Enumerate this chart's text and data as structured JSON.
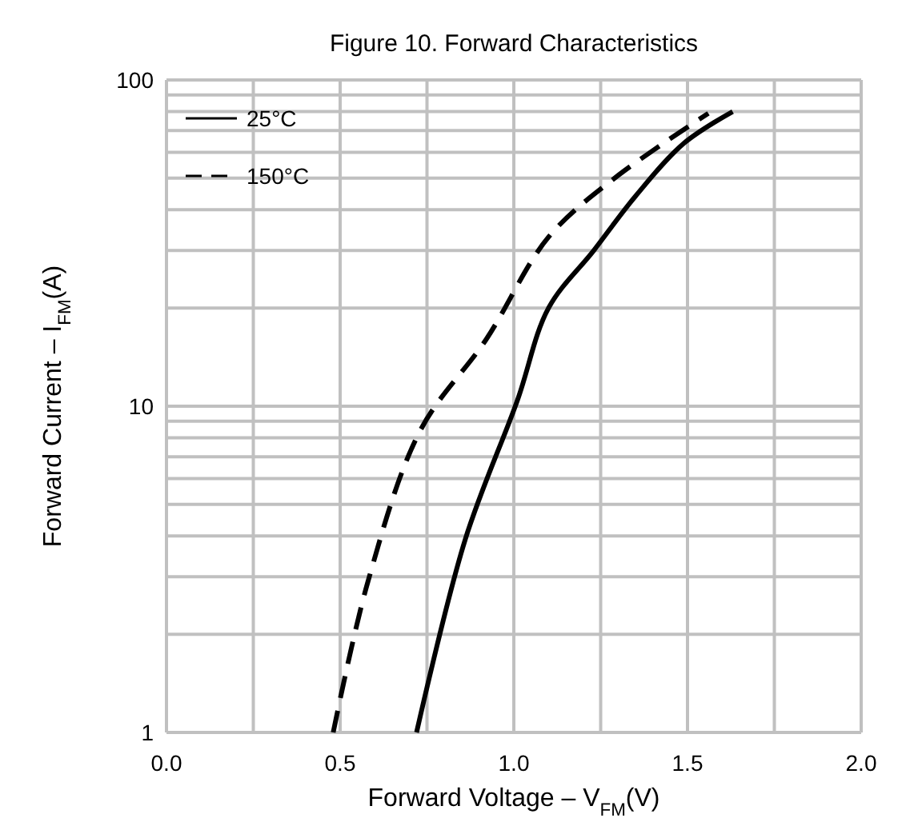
{
  "chart_data": {
    "type": "line",
    "title": "Figure 10. Forward Characteristics",
    "xlabel": "Forward Voltage    –  V$_{FM}$(V)",
    "ylabel": "Forward Current  –  I$_{FM}$(A)",
    "log": "y",
    "xlim": [
      0,
      2
    ],
    "ylim": [
      1,
      100
    ],
    "xticks": [
      {
        "value": 0,
        "label": "0.0"
      },
      {
        "value": 0.25,
        "label": null
      },
      {
        "value": 0.5,
        "label": "0.5"
      },
      {
        "value": 0.75,
        "label": null
      },
      {
        "value": 1,
        "label": "1.0"
      },
      {
        "value": 1.25,
        "label": null
      },
      {
        "value": 1.5,
        "label": "1.5"
      },
      {
        "value": 1.75,
        "label": null
      },
      {
        "value": 2,
        "label": "2.0"
      }
    ],
    "yticks": [
      1,
      {
        "value": 2,
        "label": null
      },
      {
        "value": 3,
        "label": null
      },
      {
        "value": 4,
        "label": null
      },
      {
        "value": 5,
        "label": null
      },
      {
        "value": 6,
        "label": null
      },
      {
        "value": 7,
        "label": null
      },
      {
        "value": 8,
        "label": null
      },
      {
        "value": 9,
        "label": null
      },
      10,
      {
        "value": 20,
        "label": null
      },
      {
        "value": 30,
        "label": null
      },
      {
        "value": 40,
        "label": null
      },
      {
        "value": 50,
        "label": null
      },
      {
        "value": 60,
        "label": null
      },
      {
        "value": 70,
        "label": null
      },
      {
        "value": 80,
        "label": null
      },
      {
        "value": 90,
        "label": null
      },
      100
    ],
    "grid": true,
    "legend": "top left",
    "series": [
      {
        "name": "25°C",
        "color": "#000000",
        "line_style": "solid",
        "x": [
          0.72,
          0.86,
          1.01,
          1.1,
          1.23,
          1.35,
          1.49,
          1.63
        ],
        "values": [
          1,
          3.9,
          10.4,
          20,
          30,
          44,
          64,
          80
        ]
      },
      {
        "name": "150°C",
        "color": "#000000",
        "line_style": "dashed",
        "x": [
          0.48,
          0.58,
          0.73,
          0.92,
          1.1,
          1.29,
          1.56
        ],
        "values": [
          1,
          2.9,
          8.4,
          16,
          33,
          50,
          79
        ]
      }
    ]
  }
}
